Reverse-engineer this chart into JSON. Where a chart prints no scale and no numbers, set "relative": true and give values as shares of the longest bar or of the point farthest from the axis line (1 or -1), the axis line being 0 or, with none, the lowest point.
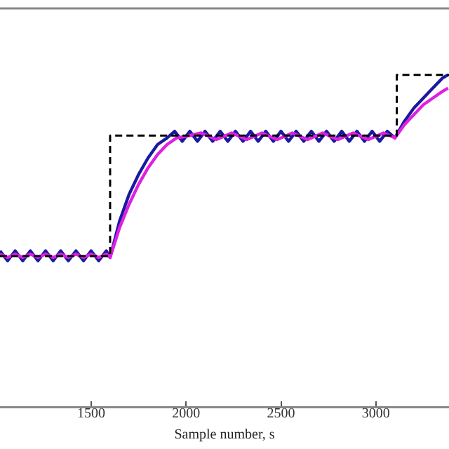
{
  "chart_data": {
    "type": "line",
    "relative": true,
    "xlabel": "Sample number, s",
    "xlim": [
      1020,
      3385
    ],
    "xticks": [
      1500,
      2000,
      2500,
      3000
    ],
    "grid": false,
    "legend": false,
    "marker": "none",
    "series": [
      {
        "color": "#e020e0",
        "x": [
          1020,
          1060,
          1100,
          1140,
          1180,
          1220,
          1260,
          1300,
          1340,
          1380,
          1420,
          1460,
          1500,
          1540,
          1580,
          1600,
          1650,
          1700,
          1750,
          1800,
          1850,
          1900,
          1950,
          2000,
          2080,
          2160,
          2240,
          2320,
          2400,
          2480,
          2560,
          2640,
          2720,
          2800,
          2880,
          2960,
          3040,
          3100,
          3150,
          3200,
          3250,
          3300,
          3350,
          3380
        ],
        "values": [
          0.46,
          0.45,
          0.46,
          0.45,
          0.46,
          0.45,
          0.46,
          0.45,
          0.46,
          0.45,
          0.46,
          0.45,
          0.46,
          0.45,
          0.46,
          0.45,
          0.54,
          0.61,
          0.67,
          0.72,
          0.76,
          0.79,
          0.81,
          0.815,
          0.825,
          0.805,
          0.825,
          0.805,
          0.825,
          0.805,
          0.825,
          0.805,
          0.825,
          0.805,
          0.825,
          0.805,
          0.825,
          0.81,
          0.85,
          0.88,
          0.91,
          0.93,
          0.95,
          0.96
        ]
      },
      {
        "color": "#1a1aa0",
        "x": [
          1020,
          1060,
          1100,
          1140,
          1180,
          1220,
          1260,
          1300,
          1340,
          1380,
          1420,
          1460,
          1500,
          1540,
          1580,
          1600,
          1650,
          1700,
          1750,
          1800,
          1850,
          1900,
          1940,
          1980,
          2020,
          2060,
          2100,
          2140,
          2180,
          2220,
          2260,
          2300,
          2340,
          2380,
          2420,
          2460,
          2500,
          2540,
          2580,
          2620,
          2660,
          2700,
          2740,
          2780,
          2820,
          2860,
          2900,
          2940,
          2980,
          3020,
          3060,
          3100,
          3150,
          3200,
          3250,
          3300,
          3350,
          3380
        ],
        "values": [
          0.47,
          0.44,
          0.47,
          0.44,
          0.47,
          0.44,
          0.47,
          0.44,
          0.47,
          0.44,
          0.47,
          0.44,
          0.47,
          0.44,
          0.47,
          0.45,
          0.56,
          0.64,
          0.7,
          0.75,
          0.79,
          0.81,
          0.83,
          0.8,
          0.83,
          0.8,
          0.83,
          0.8,
          0.83,
          0.8,
          0.83,
          0.8,
          0.83,
          0.8,
          0.83,
          0.8,
          0.83,
          0.8,
          0.83,
          0.8,
          0.83,
          0.8,
          0.83,
          0.8,
          0.83,
          0.8,
          0.83,
          0.8,
          0.83,
          0.8,
          0.83,
          0.81,
          0.86,
          0.9,
          0.93,
          0.96,
          0.99,
          1.0
        ]
      },
      {
        "color": "#000000",
        "line_style": "dashed",
        "x": [
          1020,
          1600,
          1600,
          3110,
          3110,
          3385
        ],
        "values": [
          0.454,
          0.454,
          0.817,
          0.817,
          1.0,
          1.0
        ]
      }
    ]
  }
}
